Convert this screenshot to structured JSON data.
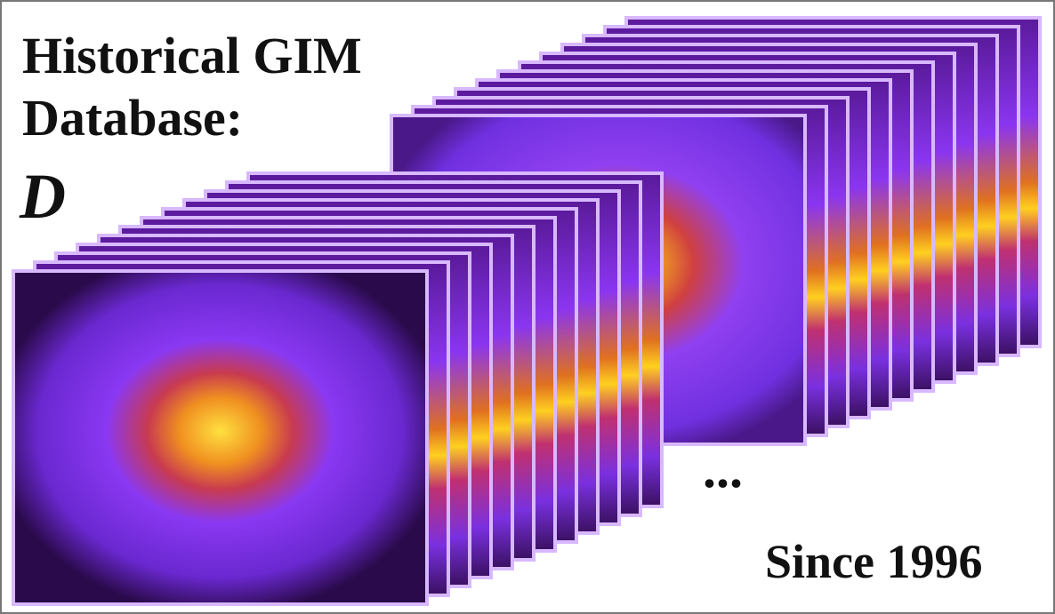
{
  "title_lines": [
    "Historical GIM",
    "Database:"
  ],
  "symbol": "D",
  "ellipsis": "...",
  "caption": "Since 1996"
}
